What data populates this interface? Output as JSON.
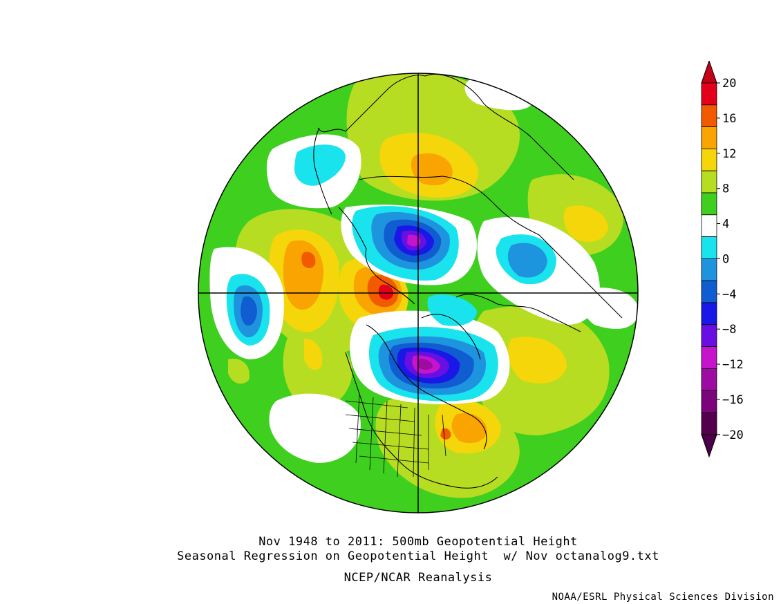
{
  "title_lines": [
    "Nov 1948 to 2011: 500mb Geopotential Height",
    "Seasonal Regression on Geopotential Height  w/ Nov octanalog9.txt"
  ],
  "dataset": "NCEP/NCAR Reanalysis",
  "credit": "NOAA/ESRL Physical Sciences Division",
  "colorbar": {
    "levels": [
      20,
      16,
      12,
      8,
      4,
      0,
      -4,
      -8,
      -12,
      -16,
      -20
    ],
    "label_texts": [
      "20",
      "16",
      "12",
      "8",
      "4",
      "0",
      "−4",
      "−8",
      "−12",
      "−16",
      "−20"
    ],
    "colors": [
      "#e4001b",
      "#f25a00",
      "#f9a400",
      "#f4d60a",
      "#b7dd22",
      "#3fcf1f",
      "#ffffff",
      "#19e4ee",
      "#1f94de",
      "#105dd2",
      "#1a18e6",
      "#6a0fe3",
      "#c613cc",
      "#9c0ba2",
      "#7b047d",
      "#55004e"
    ],
    "top_arrow_color": "#c4001a",
    "bottom_arrow_color": "#4b0048"
  },
  "map": {
    "projection": "north polar stereographic",
    "background_color": "#3fcf1f",
    "anomalies": [
      {
        "name": "arctic-low",
        "level": -12
      },
      {
        "name": "hudson-bay-low",
        "level": -16
      },
      {
        "name": "siberia-low",
        "level": -8
      },
      {
        "name": "north-pacific-low",
        "level": -8
      },
      {
        "name": "bering-high",
        "level": 16
      },
      {
        "name": "alaska-pacific-high",
        "level": 12
      },
      {
        "name": "european-high",
        "level": 12
      },
      {
        "name": "north-atlantic-high",
        "level": 12
      },
      {
        "name": "mid-atlantic-high",
        "level": 8
      }
    ]
  }
}
